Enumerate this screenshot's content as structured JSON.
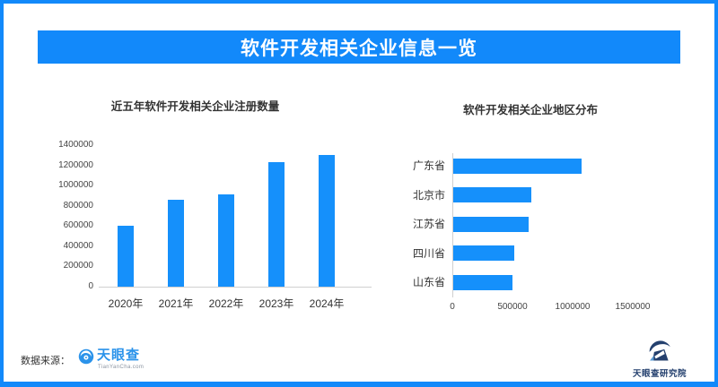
{
  "page": {
    "title": "软件开发相关企业信息一览",
    "source_label": "数据来源：",
    "brand": {
      "name": "天眼查",
      "domain": "TianYanCha.com",
      "research_institute": "天眼查研究院"
    },
    "colors": {
      "primary_blue": "#1289fa",
      "bar_blue": "#1590fb",
      "navy": "#24406e",
      "axis_gray": "#d0d0d0"
    }
  },
  "chart_data": [
    {
      "type": "bar",
      "title": "近五年软件开发相关企业注册数量",
      "categories": [
        "2020年",
        "2021年",
        "2022年",
        "2023年",
        "2024年"
      ],
      "values": [
        600000,
        860000,
        915000,
        1235000,
        1300000
      ],
      "xlabel": "",
      "ylabel": "",
      "ylim": [
        0,
        1400000
      ],
      "ytick_step": 200000,
      "grid": false,
      "legend": "none"
    },
    {
      "type": "bar-horizontal",
      "title": "软件开发相关企业地区分布",
      "categories": [
        "广东省",
        "北京市",
        "江苏省",
        "四川省",
        "山东省"
      ],
      "values": [
        1070000,
        650000,
        630000,
        510000,
        490000
      ],
      "xlabel": "",
      "ylabel": "",
      "xlim": [
        0,
        1500000
      ],
      "xticks": [
        0,
        500000,
        1000000,
        1500000
      ],
      "grid": false,
      "legend": "none"
    }
  ]
}
